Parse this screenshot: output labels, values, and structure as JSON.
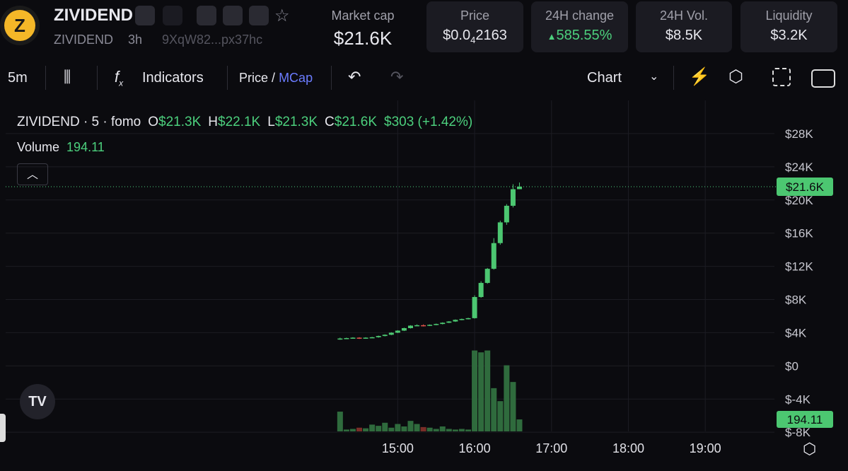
{
  "header": {
    "name": "ZIVIDEND",
    "symbol": "ZIVIDEND",
    "age": "3h",
    "address": "9XqW82...px37hc"
  },
  "stats": {
    "market_cap": {
      "label": "Market cap",
      "value": "$21.6K"
    },
    "price": {
      "label": "Price",
      "prefix": "$0.0",
      "zeros": "4",
      "digits": "2163"
    },
    "change": {
      "label": "24H change",
      "arrow": "▲",
      "value": "585.55%"
    },
    "volume": {
      "label": "24H Vol.",
      "value": "$8.5K"
    },
    "liquidity": {
      "label": "Liquidity",
      "value": "$3.2K"
    }
  },
  "toolbar": {
    "interval": "5m",
    "indicators": "Indicators",
    "price": "Price",
    "slash": "/",
    "mcap": "MCap",
    "chart": "Chart"
  },
  "chart_data": {
    "type": "candlestick",
    "legend": {
      "title": "ZIVIDEND · 5 · fomo",
      "items": [
        {
          "key": "O",
          "value": "$21.3K"
        },
        {
          "key": "H",
          "value": "$22.1K"
        },
        {
          "key": "L",
          "value": "$21.3K"
        },
        {
          "key": "C",
          "value": "$21.6K"
        }
      ],
      "change": "$303 (+1.42%)",
      "volume_label": "Volume"
    },
    "x": [
      "14:15",
      "14:20",
      "14:25",
      "14:30",
      "14:35",
      "14:40",
      "14:45",
      "14:50",
      "14:55",
      "15:00",
      "15:05",
      "15:10",
      "15:15",
      "15:20",
      "15:25",
      "15:30",
      "15:35",
      "15:40",
      "15:45",
      "15:50",
      "15:55",
      "16:00",
      "16:05",
      "16:10",
      "16:15",
      "16:20",
      "16:25",
      "16:30",
      "16:35"
    ],
    "open": [
      3200,
      3300,
      3350,
      3400,
      3300,
      3400,
      3450,
      3600,
      3750,
      4000,
      4250,
      4550,
      4850,
      4900,
      4850,
      4950,
      5050,
      5200,
      5350,
      5550,
      5650,
      5750,
      8300,
      10000,
      11700,
      14800,
      17300,
      19300,
      21300
    ],
    "high": [
      3400,
      3400,
      3450,
      3450,
      3450,
      3500,
      3650,
      3800,
      4050,
      4300,
      4600,
      4900,
      5000,
      5000,
      5000,
      5100,
      5250,
      5400,
      5600,
      5700,
      5800,
      8500,
      10200,
      11800,
      15400,
      17500,
      19500,
      21900,
      22100
    ],
    "low": [
      3150,
      3250,
      3300,
      3250,
      3300,
      3350,
      3400,
      3550,
      3700,
      3950,
      4200,
      4500,
      4800,
      4750,
      4800,
      4900,
      5000,
      5150,
      5300,
      5500,
      5600,
      5700,
      8200,
      9900,
      11600,
      14600,
      17000,
      19100,
      21300
    ],
    "close": [
      3300,
      3350,
      3400,
      3300,
      3400,
      3450,
      3600,
      3750,
      4000,
      4250,
      4550,
      4850,
      4900,
      4850,
      4950,
      5050,
      5200,
      5350,
      5550,
      5650,
      5750,
      8300,
      10000,
      11700,
      14800,
      17300,
      19300,
      21300,
      21600
    ],
    "up_color": "#4cc771",
    "down_color": "#e0534a",
    "last_label": "$21.6K",
    "volume": {
      "name": "Volume",
      "values": [
        320,
        30,
        40,
        60,
        50,
        110,
        90,
        140,
        60,
        120,
        80,
        170,
        120,
        70,
        60,
        40,
        80,
        40,
        30,
        40,
        30,
        1310,
        1280,
        1310,
        700,
        490,
        1070,
        800,
        194.11
      ],
      "ylim": [
        0,
        1500
      ],
      "color": "#2f6b3d",
      "down_color": "#7a2e28"
    },
    "ylim": [
      -7900,
      32000
    ],
    "yticks": [
      {
        "value": -8000,
        "label": "$-8K"
      },
      {
        "value": -4000,
        "label": "$-4K"
      },
      {
        "value": 0,
        "label": "$0"
      },
      {
        "value": 4000,
        "label": "$4K"
      },
      {
        "value": 8000,
        "label": "$8K"
      },
      {
        "value": 12000,
        "label": "$12K"
      },
      {
        "value": 16000,
        "label": "$16K"
      },
      {
        "value": 20000,
        "label": "$20K"
      },
      {
        "value": 24000,
        "label": "$24K"
      },
      {
        "value": 28000,
        "label": "$28K"
      }
    ],
    "xlim": [
      "09:54",
      "19:54"
    ],
    "xticks": [
      "15:00",
      "16:00",
      "17:00",
      "18:00",
      "19:00"
    ],
    "grid": true
  }
}
